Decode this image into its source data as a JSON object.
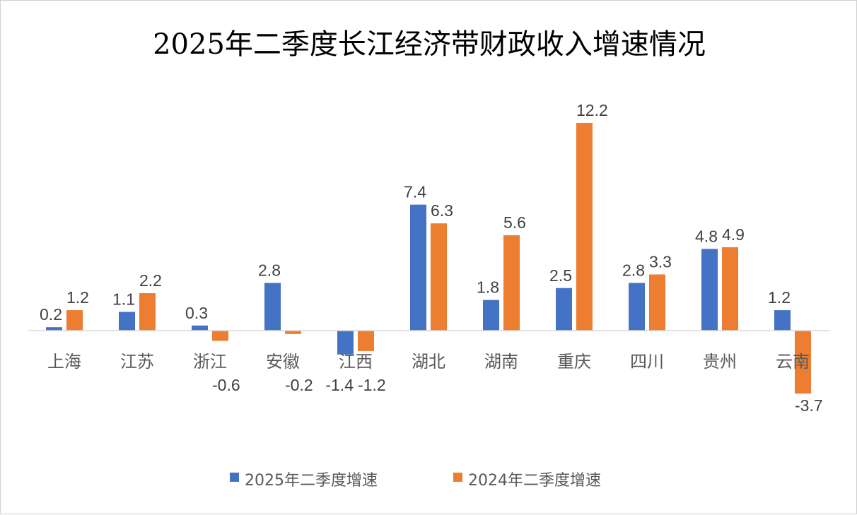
{
  "chart_data": {
    "type": "bar",
    "title": "2025年二季度长江经济带财政收入增速情况",
    "categories": [
      "上海",
      "江苏",
      "浙江",
      "安徽",
      "江西",
      "湖北",
      "湖南",
      "重庆",
      "四川",
      "贵州",
      "云南"
    ],
    "series": [
      {
        "name": "2025年二季度增速",
        "color": "#4472C4",
        "values": [
          0.2,
          1.1,
          0.3,
          2.8,
          -1.4,
          7.4,
          1.8,
          2.5,
          2.8,
          4.8,
          1.2
        ]
      },
      {
        "name": "2024年二季度增速",
        "color": "#ED7D31",
        "values": [
          1.2,
          2.2,
          -0.6,
          -0.2,
          -1.2,
          6.3,
          5.6,
          12.2,
          3.3,
          4.9,
          -3.7
        ]
      }
    ],
    "data_labels": true,
    "grid": false,
    "legend": "bottom"
  }
}
